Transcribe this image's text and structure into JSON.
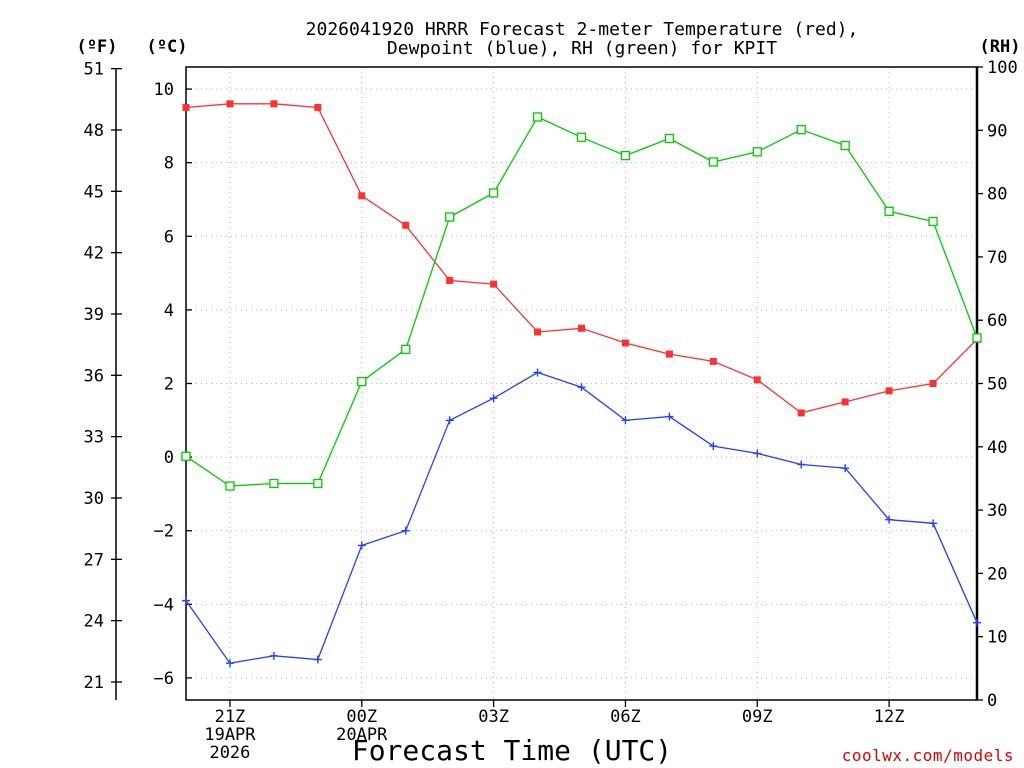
{
  "chart_data": {
    "type": "line",
    "title": {
      "line1": "2026041920 HRRR Forecast 2-meter Temperature (red),",
      "line2": "Dewpoint (blue), RH (green) for KPIT"
    },
    "xlabel": "Forecast Time (UTC)",
    "credit": "coolwx.com/models",
    "units": {
      "fahrenheit": "(ºF)",
      "celsius": "(ºC)",
      "rh": "(RH)"
    },
    "x_hours": [
      20,
      21,
      22,
      23,
      24,
      25,
      26,
      27,
      28,
      29,
      30,
      31,
      32,
      33,
      34,
      35,
      36,
      37,
      38
    ],
    "xlim": [
      20,
      38
    ],
    "x_ticks": [
      {
        "hour": 21,
        "lines": [
          "21Z",
          "19APR",
          "2026"
        ]
      },
      {
        "hour": 24,
        "lines": [
          "00Z",
          "20APR"
        ]
      },
      {
        "hour": 27,
        "lines": [
          "03Z"
        ]
      },
      {
        "hour": 30,
        "lines": [
          "06Z"
        ]
      },
      {
        "hour": 33,
        "lines": [
          "09Z"
        ]
      },
      {
        "hour": 36,
        "lines": [
          "12Z"
        ]
      }
    ],
    "celsius_axis": {
      "ylim": [
        -6.6,
        10.6
      ],
      "ticks": [
        -6,
        -4,
        -2,
        0,
        2,
        4,
        6,
        8,
        10
      ]
    },
    "fahrenheit_axis": {
      "ticks": [
        21,
        24,
        27,
        30,
        33,
        36,
        39,
        42,
        45,
        48,
        51
      ]
    },
    "rh_axis": {
      "ylim": [
        0,
        100
      ],
      "ticks": [
        0,
        10,
        20,
        30,
        40,
        50,
        60,
        70,
        80,
        90,
        100
      ]
    },
    "series": [
      {
        "name": "Temperature",
        "units": "C",
        "axis": "celsius",
        "color": "#ff3030",
        "marker": "filled-square",
        "values": [
          9.5,
          9.6,
          9.6,
          9.5,
          7.1,
          6.3,
          4.8,
          4.7,
          3.4,
          3.5,
          3.1,
          2.8,
          2.6,
          2.1,
          1.2,
          1.5,
          1.8,
          2.0,
          3.2
        ]
      },
      {
        "name": "Dewpoint",
        "units": "C",
        "axis": "celsius",
        "color": "#2040ff",
        "marker": "plus",
        "values": [
          -3.9,
          -5.6,
          -5.4,
          -5.5,
          -2.4,
          -2.0,
          1.0,
          1.6,
          2.3,
          1.9,
          1.0,
          1.1,
          0.3,
          0.1,
          -0.2,
          -0.3,
          -1.7,
          -1.8,
          -4.5
        ]
      },
      {
        "name": "RH",
        "units": "%",
        "axis": "rh",
        "color": "#00cc00",
        "marker": "open-square",
        "values": [
          38.5,
          33.8,
          34.2,
          34.2,
          50.3,
          55.4,
          76.3,
          80.1,
          92.1,
          88.9,
          86.0,
          88.7,
          85.0,
          86.6,
          90.1,
          87.6,
          77.2,
          75.6,
          57.2
        ]
      }
    ]
  }
}
